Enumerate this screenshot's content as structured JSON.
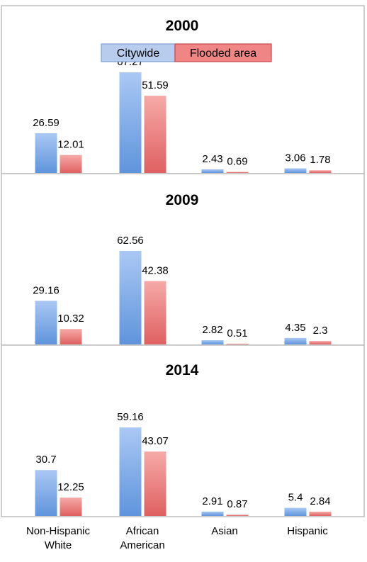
{
  "chart_data": [
    {
      "type": "bar",
      "title": "2000",
      "categories": [
        "Non-Hispanic White",
        "African American",
        "Asian",
        "Hispanic"
      ],
      "series": [
        {
          "name": "Citywide",
          "values": [
            26.59,
            67.27,
            2.43,
            3.06
          ],
          "labels": [
            "26.59",
            "67.27",
            "2.43",
            "3.06"
          ]
        },
        {
          "name": "Flooded area",
          "values": [
            12.01,
            51.59,
            0.69,
            1.78
          ],
          "labels": [
            "12.01",
            "51.59",
            "0.69",
            "1.78"
          ]
        }
      ],
      "legend": "top-center"
    },
    {
      "type": "bar",
      "title": "2009",
      "categories": [
        "Non-Hispanic White",
        "African American",
        "Asian",
        "Hispanic"
      ],
      "series": [
        {
          "name": "Citywide",
          "values": [
            29.16,
            62.56,
            2.82,
            4.35
          ],
          "labels": [
            "29.16",
            "62.56",
            "2.82",
            "4.35"
          ]
        },
        {
          "name": "Flooded area",
          "values": [
            10.32,
            42.38,
            0.51,
            2.3
          ],
          "labels": [
            "10.32",
            "42.38",
            "0.51",
            "2.3"
          ]
        }
      ]
    },
    {
      "type": "bar",
      "title": "2014",
      "categories": [
        "Non-Hispanic White",
        "African American",
        "Asian",
        "Hispanic"
      ],
      "category_lines": [
        [
          "Non-Hispanic",
          "White"
        ],
        [
          "African",
          "American"
        ],
        [
          "Asian"
        ],
        [
          "Hispanic"
        ]
      ],
      "series": [
        {
          "name": "Citywide",
          "values": [
            30.7,
            59.16,
            2.91,
            5.4
          ],
          "labels": [
            "30.7",
            "59.16",
            "2.91",
            "5.4"
          ]
        },
        {
          "name": "Flooded area",
          "values": [
            12.25,
            43.07,
            0.87,
            2.84
          ],
          "labels": [
            "12.25",
            "43.07",
            "0.87",
            "2.84"
          ]
        }
      ]
    }
  ],
  "colors": {
    "citywide": "#6f9fe0",
    "flooded": "#e56a6a"
  }
}
